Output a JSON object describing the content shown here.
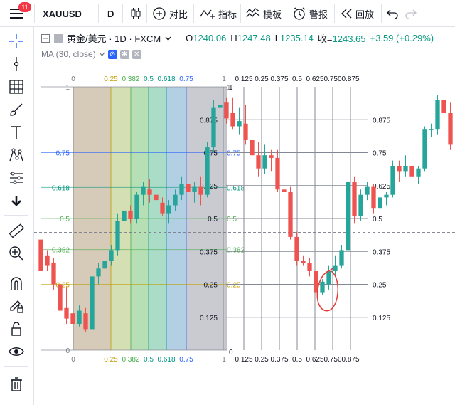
{
  "toolbar": {
    "symbol": "XAUUSD",
    "notifications": "11",
    "interval": "D",
    "compare_label": "对比",
    "indicators_label": "指标",
    "templates_label": "模板",
    "alert_label": "警报",
    "replay_label": "回放"
  },
  "legend": {
    "title": "黄金/美元 · 1D · FXCM",
    "o_label": "O",
    "o_value": "1240.06",
    "h_label": "H",
    "h_value": "1247.48",
    "l_label": "L",
    "l_value": "1235.14",
    "c_label": "收=",
    "c_value": "1243.65",
    "change": "+3.59 (+0.29%)",
    "ma": "MA (30, close)"
  },
  "colors": {
    "up": "#26a69a",
    "down": "#ef5350",
    "grid": "#848894",
    "annotation": "#e53935"
  },
  "icons": {
    "menu": "hamburger-icon",
    "crosshair": "crosshair-icon",
    "trendline": "trend-line-icon",
    "fib": "fib-grid-icon",
    "brush": "brush-icon",
    "text": "text-icon",
    "pattern": "pattern-icon",
    "measure": "ruler-icon",
    "zoom": "zoom-in-icon",
    "magnet": "magnet-icon",
    "lock-draw": "pencil-lock-icon",
    "lock": "lock-icon",
    "eye": "eye-icon",
    "trash": "trash-icon"
  },
  "fib_retracement": {
    "levels": [
      "1",
      "0.75",
      "0.618",
      "0.5",
      "0.382",
      "0.25",
      "0"
    ],
    "mid_labels": [
      "1",
      "0.75",
      "0.618",
      "0.5",
      "0.382",
      "0.25"
    ]
  },
  "fib_time_top": [
    "0",
    "0.25",
    "0.382",
    "0.5",
    "0.618",
    "0.75",
    "1"
  ],
  "fib_time_bottom": [
    "0",
    "0.25",
    "0.382",
    "0.5",
    "0.618",
    "0.75",
    "1"
  ],
  "fib_grid": {
    "h_labels": [
      "0.875",
      "0.75",
      "0.625",
      "0.5",
      "0.375",
      "0.25",
      "0.125"
    ],
    "v_labels": [
      "0.125",
      "0.25",
      "0.375",
      "0.5",
      "0.625",
      "0.750",
      "0.875"
    ],
    "corner_top": "1",
    "corner_bottom": "0"
  },
  "chart_data": {
    "type": "candlestick",
    "series": [
      {
        "name": "XAUUSD",
        "candles": [
          [
            0.42,
            0.45,
            0.28,
            0.3
          ],
          [
            0.36,
            0.38,
            0.3,
            0.32
          ],
          [
            0.33,
            0.35,
            0.23,
            0.25
          ],
          [
            0.25,
            0.28,
            0.13,
            0.15
          ],
          [
            0.16,
            0.24,
            0.1,
            0.12
          ],
          [
            0.14,
            0.16,
            0.09,
            0.1
          ],
          [
            0.1,
            0.17,
            0.09,
            0.15
          ],
          [
            0.14,
            0.16,
            0.07,
            0.08
          ],
          [
            0.08,
            0.3,
            0.07,
            0.28
          ],
          [
            0.28,
            0.33,
            0.25,
            0.31
          ],
          [
            0.31,
            0.35,
            0.29,
            0.34
          ],
          [
            0.34,
            0.4,
            0.32,
            0.38
          ],
          [
            0.38,
            0.52,
            0.36,
            0.49
          ],
          [
            0.49,
            0.54,
            0.44,
            0.53
          ],
          [
            0.53,
            0.55,
            0.48,
            0.5
          ],
          [
            0.5,
            0.6,
            0.48,
            0.59
          ],
          [
            0.59,
            0.64,
            0.55,
            0.62
          ],
          [
            0.61,
            0.65,
            0.56,
            0.59
          ],
          [
            0.59,
            0.61,
            0.54,
            0.57
          ],
          [
            0.56,
            0.58,
            0.51,
            0.52
          ],
          [
            0.52,
            0.57,
            0.48,
            0.55
          ],
          [
            0.55,
            0.61,
            0.53,
            0.59
          ],
          [
            0.59,
            0.66,
            0.57,
            0.63
          ],
          [
            0.63,
            0.65,
            0.57,
            0.6
          ],
          [
            0.6,
            0.64,
            0.56,
            0.62
          ],
          [
            0.62,
            0.66,
            0.55,
            0.59
          ],
          [
            0.59,
            0.79,
            0.58,
            0.77
          ],
          [
            0.77,
            0.95,
            0.75,
            0.92
          ],
          [
            0.92,
            0.96,
            0.88,
            0.93
          ],
          [
            0.94,
            0.96,
            0.86,
            0.88
          ],
          [
            0.9,
            0.96,
            0.84,
            0.85
          ],
          [
            0.85,
            0.92,
            0.82,
            0.87
          ],
          [
            0.86,
            0.93,
            0.78,
            0.8
          ],
          [
            0.8,
            0.82,
            0.72,
            0.74
          ],
          [
            0.74,
            0.79,
            0.66,
            0.69
          ],
          [
            0.69,
            0.78,
            0.67,
            0.74
          ],
          [
            0.74,
            0.76,
            0.68,
            0.73
          ],
          [
            0.73,
            0.76,
            0.6,
            0.61
          ],
          [
            0.61,
            0.64,
            0.58,
            0.6
          ],
          [
            0.6,
            0.62,
            0.42,
            0.43
          ],
          [
            0.43,
            0.45,
            0.32,
            0.34
          ],
          [
            0.34,
            0.36,
            0.32,
            0.33
          ],
          [
            0.33,
            0.35,
            0.28,
            0.3
          ],
          [
            0.3,
            0.33,
            0.2,
            0.22
          ],
          [
            0.22,
            0.27,
            0.21,
            0.26
          ],
          [
            0.25,
            0.32,
            0.23,
            0.3
          ],
          [
            0.3,
            0.36,
            0.28,
            0.32
          ],
          [
            0.32,
            0.4,
            0.31,
            0.38
          ],
          [
            0.38,
            0.64,
            0.37,
            0.64
          ],
          [
            0.64,
            0.66,
            0.48,
            0.51
          ],
          [
            0.51,
            0.61,
            0.49,
            0.59
          ],
          [
            0.59,
            0.64,
            0.57,
            0.62
          ],
          [
            0.62,
            0.63,
            0.52,
            0.54
          ],
          [
            0.54,
            0.62,
            0.51,
            0.58
          ],
          [
            0.58,
            0.6,
            0.55,
            0.59
          ],
          [
            0.59,
            0.72,
            0.58,
            0.7
          ],
          [
            0.7,
            0.72,
            0.64,
            0.68
          ],
          [
            0.68,
            0.74,
            0.66,
            0.7
          ],
          [
            0.7,
            0.75,
            0.64,
            0.66
          ],
          [
            0.66,
            0.7,
            0.63,
            0.69
          ],
          [
            0.69,
            0.85,
            0.68,
            0.84
          ],
          [
            0.84,
            0.86,
            0.81,
            0.84
          ],
          [
            0.84,
            0.97,
            0.82,
            0.95
          ],
          [
            0.95,
            0.99,
            0.86,
            0.9
          ],
          [
            0.9,
            0.94,
            0.76,
            0.78
          ]
        ]
      }
    ],
    "price_line": 0.447
  }
}
